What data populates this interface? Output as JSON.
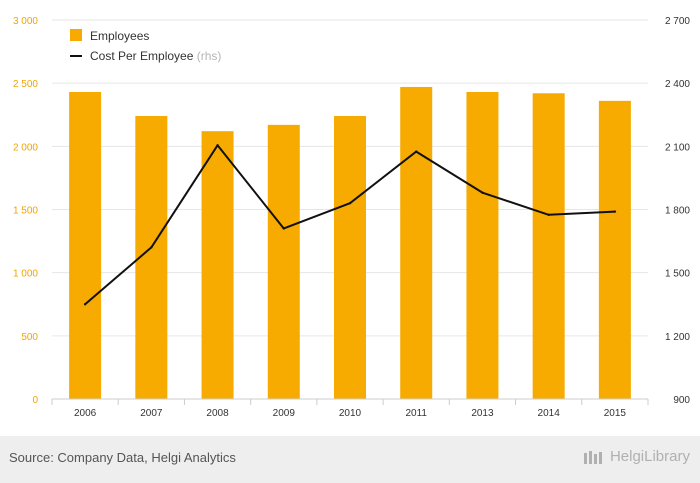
{
  "chart_data": {
    "type": "bar",
    "categories": [
      "2006",
      "2007",
      "2008",
      "2009",
      "2010",
      "2011",
      "2013",
      "2014",
      "2015"
    ],
    "series": [
      {
        "name": "Employees",
        "type": "bar",
        "axis": "left",
        "color": "#f7ab00",
        "values": [
          2430,
          2240,
          2120,
          2170,
          2240,
          2470,
          2430,
          2420,
          2360
        ]
      },
      {
        "name": "Cost Per Employee",
        "type": "line",
        "axis": "right",
        "color": "#111111",
        "values": [
          1350,
          1620,
          2105,
          1710,
          1830,
          2075,
          1880,
          1775,
          1790
        ]
      }
    ],
    "legend": [
      {
        "label": "Employees",
        "suffix": ""
      },
      {
        "label": "Cost Per Employee",
        "suffix": " (rhs)"
      }
    ],
    "y_left": {
      "min": 0,
      "max": 3000,
      "ticks": [
        0,
        500,
        1000,
        1500,
        2000,
        2500,
        3000
      ],
      "tick_labels": [
        "0",
        "500",
        "1 000",
        "1 500",
        "2 000",
        "2 500",
        "3 000"
      ]
    },
    "y_right": {
      "min": 900,
      "max": 2700,
      "ticks": [
        900,
        1200,
        1500,
        1800,
        2100,
        2400,
        2700
      ],
      "tick_labels": [
        "900",
        "1 200",
        "1 500",
        "1 800",
        "2 100",
        "2 400",
        "2 700"
      ]
    },
    "colors": {
      "bar": "#f7ab00",
      "line": "#111111",
      "grid": "#e6e6e6",
      "left_axis_text": "#f0a500",
      "right_axis_text": "#333333"
    }
  },
  "footer": {
    "source": "Source: Company Data, Helgi Analytics",
    "logo": "HelgiLibrary"
  }
}
